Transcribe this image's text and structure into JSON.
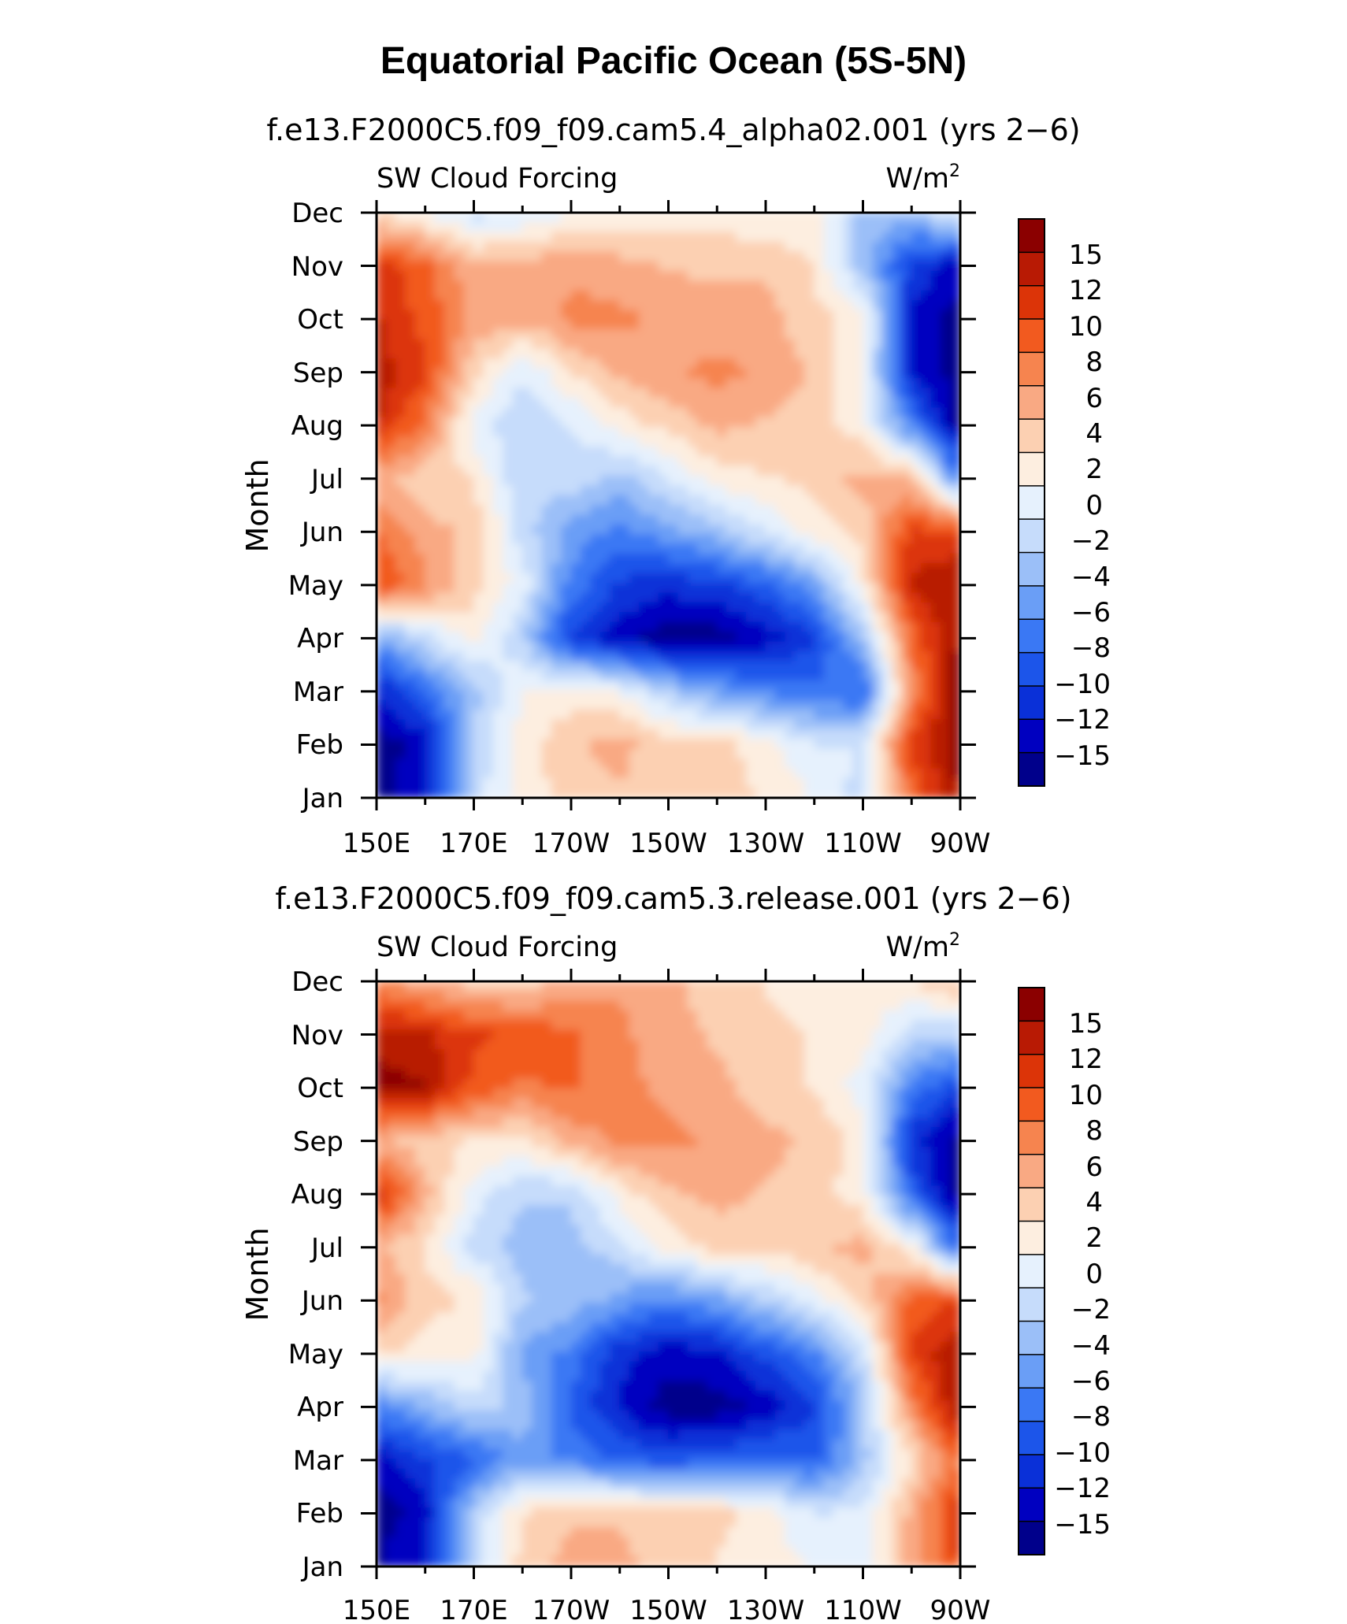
{
  "page_title": "Equatorial Pacific Ocean (5S-5N)",
  "colors": {
    "levels": [
      "#00008b",
      "#0000c0",
      "#0a30d8",
      "#1c55ea",
      "#3a78f4",
      "#6a9ef6",
      "#9bbff8",
      "#c6dcfb",
      "#e6f1fd",
      "#fdeee0",
      "#fcd0b2",
      "#f9a983",
      "#f6844f",
      "#f25a1f",
      "#dc3408",
      "#b81a04",
      "#8b0000"
    ]
  },
  "chart_data": [
    {
      "type": "heatmap",
      "subtitle": "f.e13.F2000C5.f09_f09.cam5.4_alpha02.001 (yrs 2−6)",
      "variable": "SW Cloud Forcing",
      "units": "W/m",
      "units_sup": "2",
      "ylabel": "Month",
      "y_ticks": [
        "Jan",
        "Feb",
        "Mar",
        "Apr",
        "May",
        "Jun",
        "Jul",
        "Aug",
        "Sep",
        "Oct",
        "Nov",
        "Dec"
      ],
      "x_ticks": [
        "150E",
        "170E",
        "170W",
        "150W",
        "130W",
        "110W",
        "90W"
      ],
      "x_range_lon": [
        150,
        270
      ],
      "colorbar_labels": [
        "15",
        "12",
        "10",
        "8",
        "6",
        "4",
        "2",
        "0",
        "−2",
        "−4",
        "−6",
        "−8",
        "−10",
        "−12",
        "−15"
      ],
      "z_range": [
        -18,
        18
      ],
      "lon_grid": [
        150,
        160,
        170,
        180,
        190,
        200,
        210,
        220,
        230,
        240,
        250,
        260,
        270
      ],
      "values_by_month": [
        [
          -17,
          -14,
          -2,
          2,
          4,
          5,
          4,
          4,
          3,
          1,
          -2,
          10,
          16
        ],
        [
          -17,
          -15,
          -3,
          2,
          5,
          6,
          4,
          4,
          2,
          -1,
          -1,
          12,
          17
        ],
        [
          -14,
          -9,
          -4,
          1,
          2,
          1,
          -3,
          -6,
          -8,
          -9,
          -10,
          8,
          18
        ],
        [
          -6,
          -2,
          2,
          -3,
          -12,
          -15,
          -17,
          -17,
          -15,
          -12,
          -4,
          10,
          16
        ],
        [
          12,
          8,
          4,
          0,
          -8,
          -12,
          -13,
          -12,
          -10,
          -6,
          2,
          14,
          16
        ],
        [
          10,
          6,
          5,
          -2,
          -6,
          -8,
          -6,
          -4,
          -1,
          2,
          4,
          12,
          12
        ],
        [
          6,
          4,
          3,
          -3,
          -2,
          -4,
          -1,
          2,
          3,
          4,
          6,
          5,
          -8
        ],
        [
          14,
          9,
          0,
          -3,
          -1,
          2,
          4,
          6,
          5,
          4,
          2,
          -8,
          -17
        ],
        [
          15,
          12,
          4,
          -1,
          3,
          6,
          7,
          8,
          7,
          5,
          1,
          -14,
          -17
        ],
        [
          14,
          11,
          7,
          6,
          8,
          8,
          7,
          6,
          6,
          4,
          2,
          -14,
          -17
        ],
        [
          13,
          10,
          6,
          6,
          7,
          6,
          5,
          5,
          5,
          3,
          -4,
          -12,
          -15
        ],
        [
          3,
          1,
          -2,
          -1,
          1,
          2,
          2,
          2,
          1,
          2,
          -4,
          -4,
          0
        ]
      ]
    },
    {
      "type": "heatmap",
      "subtitle": "f.e13.F2000C5.f09_f09.cam5.3.release.001 (yrs 2−6)",
      "variable": "SW Cloud Forcing",
      "units": "W/m",
      "units_sup": "2",
      "ylabel": "Month",
      "y_ticks": [
        "Jan",
        "Feb",
        "Mar",
        "Apr",
        "May",
        "Jun",
        "Jul",
        "Aug",
        "Sep",
        "Oct",
        "Nov",
        "Dec"
      ],
      "x_ticks": [
        "150E",
        "170E",
        "170W",
        "150W",
        "130W",
        "110W",
        "90W"
      ],
      "x_range_lon": [
        150,
        270
      ],
      "colorbar_labels": [
        "15",
        "12",
        "10",
        "8",
        "6",
        "4",
        "2",
        "0",
        "−2",
        "−4",
        "−6",
        "−8",
        "−10",
        "−12",
        "−15"
      ],
      "z_range": [
        -18,
        18
      ],
      "lon_grid": [
        150,
        160,
        170,
        180,
        190,
        200,
        210,
        220,
        230,
        240,
        250,
        260,
        270
      ],
      "values_by_month": [
        [
          -16,
          -14,
          -2,
          4,
          6,
          6,
          4,
          3,
          2,
          1,
          -1,
          6,
          12
        ],
        [
          -17,
          -15,
          -3,
          3,
          5,
          5,
          4,
          4,
          2,
          -1,
          -1,
          6,
          13
        ],
        [
          -15,
          -12,
          -10,
          -6,
          -8,
          -10,
          -11,
          -10,
          -9,
          -10,
          -4,
          3,
          10
        ],
        [
          -8,
          -5,
          -2,
          -4,
          -10,
          -14,
          -17,
          -17,
          -15,
          -12,
          -4,
          8,
          16
        ],
        [
          4,
          2,
          2,
          -6,
          -8,
          -13,
          -15,
          -14,
          -11,
          -8,
          -2,
          12,
          16
        ],
        [
          8,
          4,
          3,
          -3,
          -4,
          -6,
          -8,
          -6,
          -3,
          0,
          4,
          10,
          12
        ],
        [
          6,
          3,
          -2,
          -4,
          -4,
          -2,
          2,
          4,
          4,
          5,
          6,
          2,
          -10
        ],
        [
          14,
          6,
          0,
          -3,
          -3,
          2,
          5,
          6,
          5,
          4,
          2,
          -10,
          -17
        ],
        [
          6,
          4,
          3,
          3,
          6,
          8,
          8,
          7,
          6,
          5,
          2,
          -13,
          -17
        ],
        [
          17,
          16,
          11,
          9,
          10,
          8,
          7,
          6,
          4,
          3,
          0,
          -8,
          -12
        ],
        [
          15,
          14,
          12,
          11,
          10,
          8,
          6,
          5,
          4,
          3,
          2,
          -2,
          -3
        ],
        [
          8,
          6,
          4,
          4,
          6,
          7,
          6,
          4,
          3,
          2,
          2,
          3,
          6
        ]
      ]
    }
  ]
}
